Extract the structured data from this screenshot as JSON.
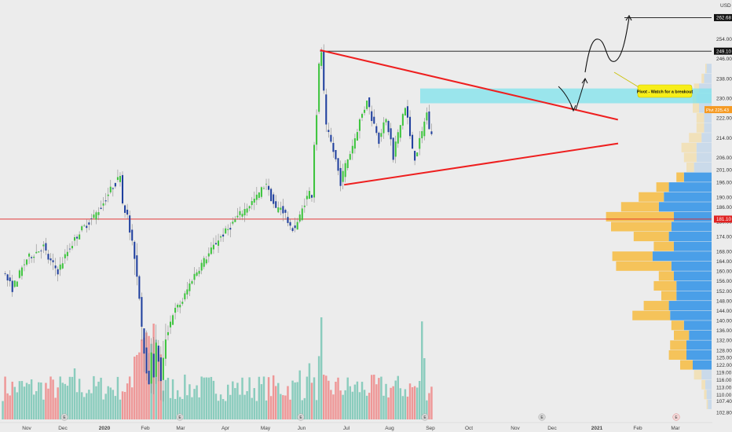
{
  "chart_data": {
    "type": "candlestick",
    "currency": "USD",
    "ylim": [
      100,
      266
    ],
    "y_ticks": [
      102.8,
      107.4,
      110.0,
      113.0,
      116.0,
      119.0,
      122.0,
      125.0,
      128.0,
      132.0,
      136.0,
      140.0,
      144.0,
      148.0,
      152.0,
      156.0,
      160.0,
      164.0,
      168.0,
      174.0,
      180.0,
      186.0,
      190.0,
      196.0,
      201.0,
      206.0,
      214.0,
      222.0,
      230.0,
      238.0,
      246.0,
      254.0
    ],
    "y_tick_labels": [
      "102.80",
      "107.40",
      "110.00",
      "113.00",
      "116.00",
      "119.00",
      "122.00",
      "125.00",
      "128.00",
      "132.00",
      "136.00",
      "140.00",
      "144.00",
      "148.00",
      "152.00",
      "156.00",
      "160.00",
      "164.00",
      "168.00",
      "174.00",
      "180.00",
      "186.00",
      "190.00",
      "196.00",
      "201.00",
      "206.00",
      "214.00",
      "222.00",
      "230.00",
      "238.00",
      "246.00",
      "254.00"
    ],
    "x_ticks": [
      {
        "label": "Nov",
        "bold": false
      },
      {
        "label": "Dec",
        "bold": false
      },
      {
        "label": "2020",
        "bold": true
      },
      {
        "label": "Feb",
        "bold": false
      },
      {
        "label": "Mar",
        "bold": false
      },
      {
        "label": "Apr",
        "bold": false
      },
      {
        "label": "May",
        "bold": false
      },
      {
        "label": "Jun",
        "bold": false
      },
      {
        "label": "Jul",
        "bold": false
      },
      {
        "label": "Aug",
        "bold": false
      },
      {
        "label": "Sep",
        "bold": false
      },
      {
        "label": "Oct",
        "bold": false
      },
      {
        "label": "Nov",
        "bold": false
      },
      {
        "label": "Dec",
        "bold": false
      },
      {
        "label": "2021",
        "bold": true
      },
      {
        "label": "Feb",
        "bold": false
      },
      {
        "label": "Mar",
        "bold": false
      }
    ],
    "price_path": [
      [
        0,
        160
      ],
      [
        4,
        153
      ],
      [
        10,
        165
      ],
      [
        17,
        170
      ],
      [
        19,
        165
      ],
      [
        23,
        160
      ],
      [
        27,
        168
      ],
      [
        32,
        176
      ],
      [
        37,
        181
      ],
      [
        41,
        186
      ],
      [
        45,
        193
      ],
      [
        48,
        197
      ],
      [
        49,
        200
      ],
      [
        50,
        188
      ],
      [
        52,
        182
      ],
      [
        53,
        176
      ],
      [
        55,
        166
      ],
      [
        57,
        150
      ],
      [
        58,
        138
      ],
      [
        59,
        128
      ],
      [
        60,
        120
      ],
      [
        61,
        113
      ],
      [
        62,
        128
      ],
      [
        63,
        118
      ],
      [
        64,
        130
      ],
      [
        65,
        124
      ],
      [
        66,
        115
      ],
      [
        68,
        133
      ],
      [
        71,
        143
      ],
      [
        75,
        148
      ],
      [
        79,
        157
      ],
      [
        83,
        163
      ],
      [
        86,
        167
      ],
      [
        90,
        173
      ],
      [
        94,
        177
      ],
      [
        98,
        182
      ],
      [
        102,
        186
      ],
      [
        106,
        190
      ],
      [
        110,
        196
      ],
      [
        111,
        192
      ],
      [
        114,
        185
      ],
      [
        116,
        186
      ],
      [
        118,
        183
      ],
      [
        120,
        177
      ],
      [
        122,
        178
      ],
      [
        124,
        182
      ],
      [
        126,
        188
      ],
      [
        128,
        192
      ],
      [
        129,
        191
      ],
      [
        130,
        212
      ],
      [
        131,
        224
      ],
      [
        132,
        243
      ],
      [
        133,
        249
      ],
      [
        134,
        232
      ],
      [
        135,
        218
      ],
      [
        137,
        212
      ],
      [
        139,
        205
      ],
      [
        141,
        196
      ],
      [
        143,
        203
      ],
      [
        145,
        208
      ],
      [
        147,
        214
      ],
      [
        149,
        221
      ],
      [
        151,
        226
      ],
      [
        152,
        230
      ],
      [
        153,
        226
      ],
      [
        154,
        222
      ],
      [
        156,
        217
      ],
      [
        157,
        213
      ],
      [
        158,
        217
      ],
      [
        160,
        221
      ],
      [
        162,
        213
      ],
      [
        163,
        205
      ],
      [
        164,
        212
      ],
      [
        166,
        219
      ],
      [
        167,
        224
      ],
      [
        168,
        226
      ],
      [
        169,
        222
      ],
      [
        170,
        214
      ],
      [
        172,
        206
      ],
      [
        173,
        209
      ],
      [
        175,
        216
      ],
      [
        176,
        221
      ],
      [
        177,
        224
      ],
      [
        178,
        218
      ],
      [
        179,
        215
      ]
    ],
    "volume_max": 100,
    "hlines": [
      {
        "price": 249.1,
        "label": "249.10",
        "color": "#111111"
      },
      {
        "price": 262.68,
        "label": "262.68",
        "color": "#111111"
      },
      {
        "price": 181.1,
        "label": "181.10",
        "color": "#e02222"
      },
      {
        "price": 225.43,
        "label": "225.43",
        "color": "#f59a23"
      }
    ],
    "pivot_zone": [
      228,
      234
    ],
    "triangle_upper": [
      [
        133,
        249.5
      ],
      [
        195,
        222
      ]
    ],
    "triangle_lower": [
      [
        143,
        195
      ],
      [
        195,
        213
      ]
    ],
    "annotation": "Pivot - Watch for a breakout",
    "event_markers": [
      "E",
      "E",
      "E",
      "E",
      "E",
      "E",
      "E",
      "E"
    ],
    "volume_profile": [
      [
        166,
        0.32,
        0.47
      ],
      [
        162,
        0.44,
        0.32
      ],
      [
        158,
        0.12,
        0.3
      ],
      [
        154,
        0.18,
        0.28
      ],
      [
        150,
        0.12,
        0.28
      ],
      [
        146,
        0.2,
        0.34
      ],
      [
        142,
        0.3,
        0.33
      ],
      [
        138,
        0.1,
        0.22
      ],
      [
        134,
        0.12,
        0.18
      ],
      [
        130,
        0.13,
        0.2
      ],
      [
        126,
        0.14,
        0.2
      ],
      [
        122,
        0.1,
        0.15
      ],
      [
        178,
        0.48,
        0.32
      ],
      [
        174,
        0.28,
        0.34
      ],
      [
        170,
        0.16,
        0.3
      ],
      [
        182,
        0.54,
        0.3
      ],
      [
        186,
        0.3,
        0.42
      ],
      [
        190,
        0.2,
        0.38
      ],
      [
        194,
        0.1,
        0.34
      ],
      [
        198,
        0.06,
        0.22
      ],
      [
        202,
        0.06,
        0.14
      ],
      [
        206,
        0.1,
        0.12
      ],
      [
        210,
        0.12,
        0.12
      ],
      [
        214,
        0.1,
        0.08
      ],
      [
        218,
        0.06,
        0.06
      ],
      [
        222,
        0.06,
        0.06
      ],
      [
        226,
        0.05,
        0.1
      ],
      [
        230,
        0.03,
        0.12
      ],
      [
        234,
        0.04,
        0.1
      ],
      [
        238,
        0.02,
        0.06
      ],
      [
        242,
        0.01,
        0.04
      ],
      [
        118,
        0.06,
        0.08
      ],
      [
        114,
        0.03,
        0.05
      ],
      [
        110,
        0.02,
        0.04
      ],
      [
        106,
        0.01,
        0.03
      ]
    ]
  }
}
